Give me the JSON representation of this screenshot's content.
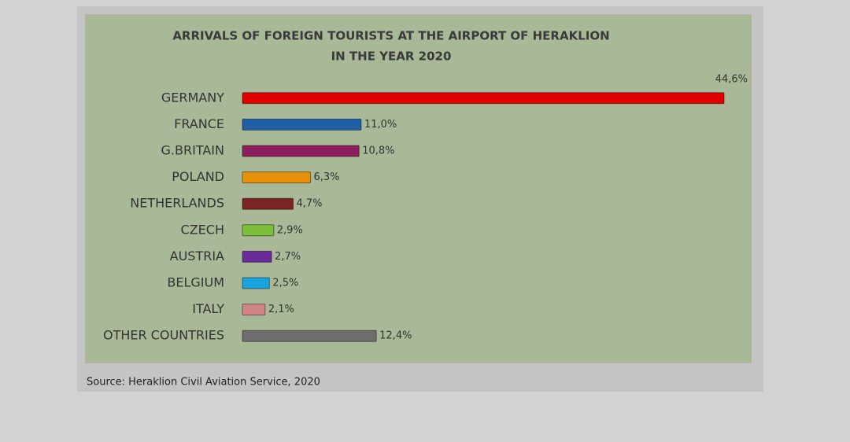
{
  "chart_data": {
    "type": "bar",
    "orientation": "horizontal",
    "title": [
      "ARRIVALS OF FOREIGN TOURISTS AT THE AIRPORT OF HERAKLION",
      "IN THE YEAR 2020"
    ],
    "categories": [
      "GERMANY",
      "FRANCE",
      "G.BRITAIN",
      "POLAND",
      "NETHERLANDS",
      "CZECH",
      "AUSTRIA",
      "BELGIUM",
      "ITALY",
      "OTHER COUNTRIES"
    ],
    "values": [
      44.6,
      11.0,
      10.8,
      6.3,
      4.7,
      2.9,
      2.7,
      2.5,
      2.1,
      12.4
    ],
    "value_labels": [
      "44,6%",
      "11,0%",
      "10,8%",
      "6,3%",
      "4,7%",
      "2,9%",
      "2,7%",
      "2,5%",
      "2,1%",
      "12,4%"
    ],
    "colors": [
      "#e00000",
      "#1f5fa8",
      "#8e1f5e",
      "#e8900a",
      "#7a2424",
      "#7cbf3a",
      "#6a2a9a",
      "#1aa3e0",
      "#d08484",
      "#6e6e6e"
    ],
    "source": "Source: Heraklion Civil Aviation Service, 2020"
  }
}
